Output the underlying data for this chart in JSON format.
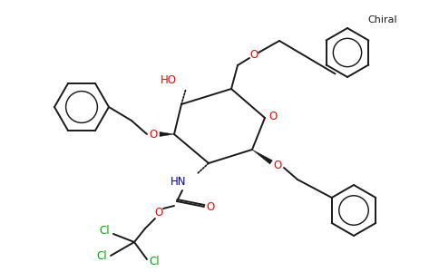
{
  "background_color": "#ffffff",
  "bond_color": "#1a1a1a",
  "oxygen_color": "#ff0000",
  "nitrogen_color": "#0000cd",
  "chlorine_color": "#00aa00",
  "chiral_label": "Chiral",
  "ho_label": "HO",
  "nh_label": "HN",
  "o_label": "O",
  "cl_label": "Cl",
  "figsize": [
    4.84,
    3.0
  ],
  "dpi": 100
}
